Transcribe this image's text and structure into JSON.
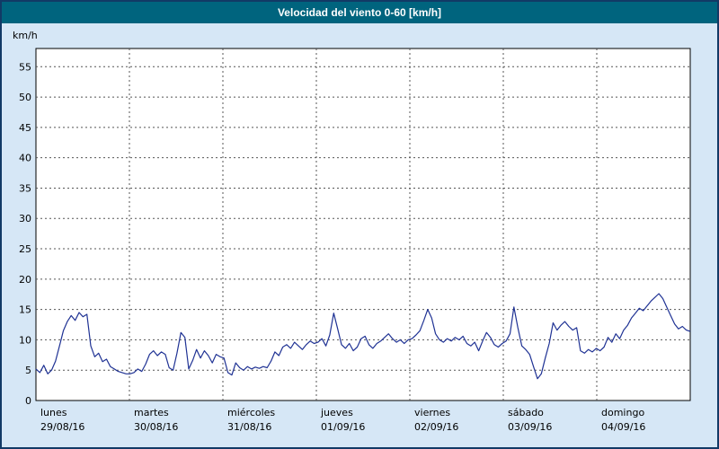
{
  "title_bar": {
    "title": "Velocidad del viento 0-60 [km/h]"
  },
  "colors": {
    "titlebar": "#00647e",
    "window_background": "#d6e7f6",
    "window_border": "#123a66",
    "plot_background": "#ffffff",
    "grid": "#555555",
    "line": "#1f3294"
  },
  "chart_data": {
    "type": "line",
    "title": "Velocidad del viento 0-60 [km/h]",
    "ylabel": "km/h",
    "xlabel": "",
    "ylim": [
      0,
      58
    ],
    "yticks": [
      0,
      5,
      10,
      15,
      20,
      25,
      30,
      35,
      40,
      45,
      50,
      55
    ],
    "grid": "dashed",
    "legend_position": "none",
    "x_categories": [
      {
        "name": "lunes",
        "date": "29/08/16"
      },
      {
        "name": "martes",
        "date": "30/08/16"
      },
      {
        "name": "miércoles",
        "date": "31/08/16"
      },
      {
        "name": "jueves",
        "date": "01/09/16"
      },
      {
        "name": "viernes",
        "date": "02/09/16"
      },
      {
        "name": "sábado",
        "date": "03/09/16"
      },
      {
        "name": "domingo",
        "date": "04/09/16"
      }
    ],
    "points_per_day": 24,
    "series": [
      {
        "name": "velocidad del viento [km/h]",
        "color": "#1f3294",
        "values": [
          5.2,
          4.6,
          5.8,
          4.4,
          5.0,
          6.5,
          9.0,
          11.5,
          13.0,
          14.0,
          13.2,
          14.5,
          13.8,
          14.2,
          9.0,
          7.2,
          7.8,
          6.4,
          6.8,
          5.6,
          5.2,
          4.8,
          4.6,
          4.4,
          4.4,
          4.6,
          5.2,
          4.8,
          6.0,
          7.6,
          8.2,
          7.4,
          8.0,
          7.6,
          5.4,
          5.0,
          7.8,
          11.2,
          10.4,
          5.2,
          6.6,
          8.4,
          7.0,
          8.2,
          7.4,
          6.2,
          7.6,
          7.2,
          7.0,
          4.6,
          4.2,
          6.2,
          5.4,
          5.0,
          5.6,
          5.2,
          5.5,
          5.3,
          5.6,
          5.4,
          6.5,
          8.0,
          7.4,
          8.8,
          9.2,
          8.6,
          9.6,
          9.0,
          8.4,
          9.2,
          9.8,
          9.4,
          9.6,
          10.2,
          9.0,
          10.8,
          14.4,
          11.8,
          9.2,
          8.6,
          9.4,
          8.2,
          8.8,
          10.2,
          10.6,
          9.2,
          8.6,
          9.4,
          9.8,
          10.4,
          11.0,
          10.2,
          9.6,
          10.0,
          9.4,
          10.0,
          10.2,
          10.8,
          11.5,
          13.2,
          15.0,
          13.6,
          11.0,
          10.0,
          9.6,
          10.2,
          9.8,
          10.4,
          10.0,
          10.6,
          9.4,
          9.0,
          9.6,
          8.2,
          9.8,
          11.2,
          10.4,
          9.2,
          8.8,
          9.4,
          9.8,
          11.0,
          15.4,
          12.0,
          9.0,
          8.4,
          7.6,
          5.6,
          3.6,
          4.4,
          7.0,
          9.4,
          12.8,
          11.6,
          12.4,
          13.0,
          12.2,
          11.6,
          12.0,
          8.2,
          7.8,
          8.4,
          8.0,
          8.6,
          8.2,
          8.8,
          10.4,
          9.6,
          11.0,
          10.2,
          11.6,
          12.4,
          13.6,
          14.4,
          15.2,
          14.8,
          15.6,
          16.4,
          17.0,
          17.6,
          16.8,
          15.4,
          14.0,
          12.6,
          11.8,
          12.2,
          11.6,
          11.4
        ]
      }
    ]
  }
}
